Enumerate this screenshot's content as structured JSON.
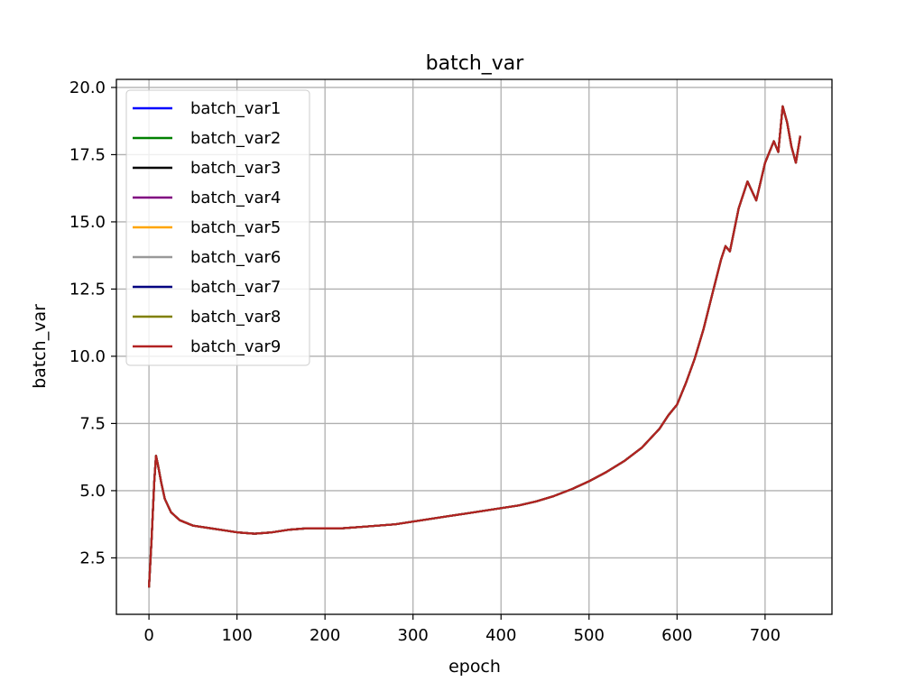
{
  "chart_data": {
    "type": "line",
    "title": "batch_var",
    "xlabel": "epoch",
    "ylabel": "batch_var",
    "xlim": [
      -37,
      776
    ],
    "ylim": [
      0.4,
      20.3
    ],
    "xticks": [
      0,
      100,
      200,
      300,
      400,
      500,
      600,
      700
    ],
    "yticks": [
      2.5,
      5.0,
      7.5,
      10.0,
      12.5,
      15.0,
      17.5,
      20.0
    ],
    "xtick_labels": [
      "0",
      "100",
      "200",
      "300",
      "400",
      "500",
      "600",
      "700"
    ],
    "ytick_labels": [
      "2.5",
      "5.0",
      "7.5",
      "10.0",
      "12.5",
      "15.0",
      "17.5",
      "20.0"
    ],
    "grid": true,
    "legend_position": "upper-left",
    "x": [
      0,
      3,
      6,
      8,
      10,
      14,
      18,
      25,
      35,
      50,
      70,
      90,
      100,
      120,
      140,
      160,
      180,
      200,
      220,
      240,
      260,
      280,
      300,
      320,
      340,
      360,
      380,
      400,
      420,
      440,
      460,
      480,
      500,
      520,
      540,
      560,
      580,
      590,
      600,
      610,
      620,
      630,
      640,
      650,
      655,
      660,
      670,
      680,
      690,
      700,
      710,
      715,
      720,
      725,
      730,
      735,
      740
    ],
    "series": [
      {
        "name": "batch_var1",
        "color": "#0000ff"
      },
      {
        "name": "batch_var2",
        "color": "#008000"
      },
      {
        "name": "batch_var3",
        "color": "#000000"
      },
      {
        "name": "batch_var4",
        "color": "#800080"
      },
      {
        "name": "batch_var5",
        "color": "#ffa500"
      },
      {
        "name": "batch_var6",
        "color": "#999999"
      },
      {
        "name": "batch_var7",
        "color": "#000080"
      },
      {
        "name": "batch_var8",
        "color": "#808000"
      },
      {
        "name": "batch_var9",
        "color": "#b22222"
      }
    ],
    "values": [
      1.4,
      3.2,
      5.3,
      6.3,
      6.0,
      5.3,
      4.7,
      4.2,
      3.9,
      3.7,
      3.6,
      3.5,
      3.45,
      3.4,
      3.45,
      3.55,
      3.6,
      3.6,
      3.6,
      3.65,
      3.7,
      3.75,
      3.85,
      3.95,
      4.05,
      4.15,
      4.25,
      4.35,
      4.45,
      4.6,
      4.8,
      5.05,
      5.35,
      5.7,
      6.1,
      6.6,
      7.3,
      7.8,
      8.2,
      9.0,
      9.9,
      11.0,
      12.3,
      13.6,
      14.1,
      13.9,
      15.5,
      16.5,
      15.8,
      17.2,
      18.0,
      17.6,
      19.3,
      18.7,
      17.8,
      17.2,
      18.2
    ]
  }
}
